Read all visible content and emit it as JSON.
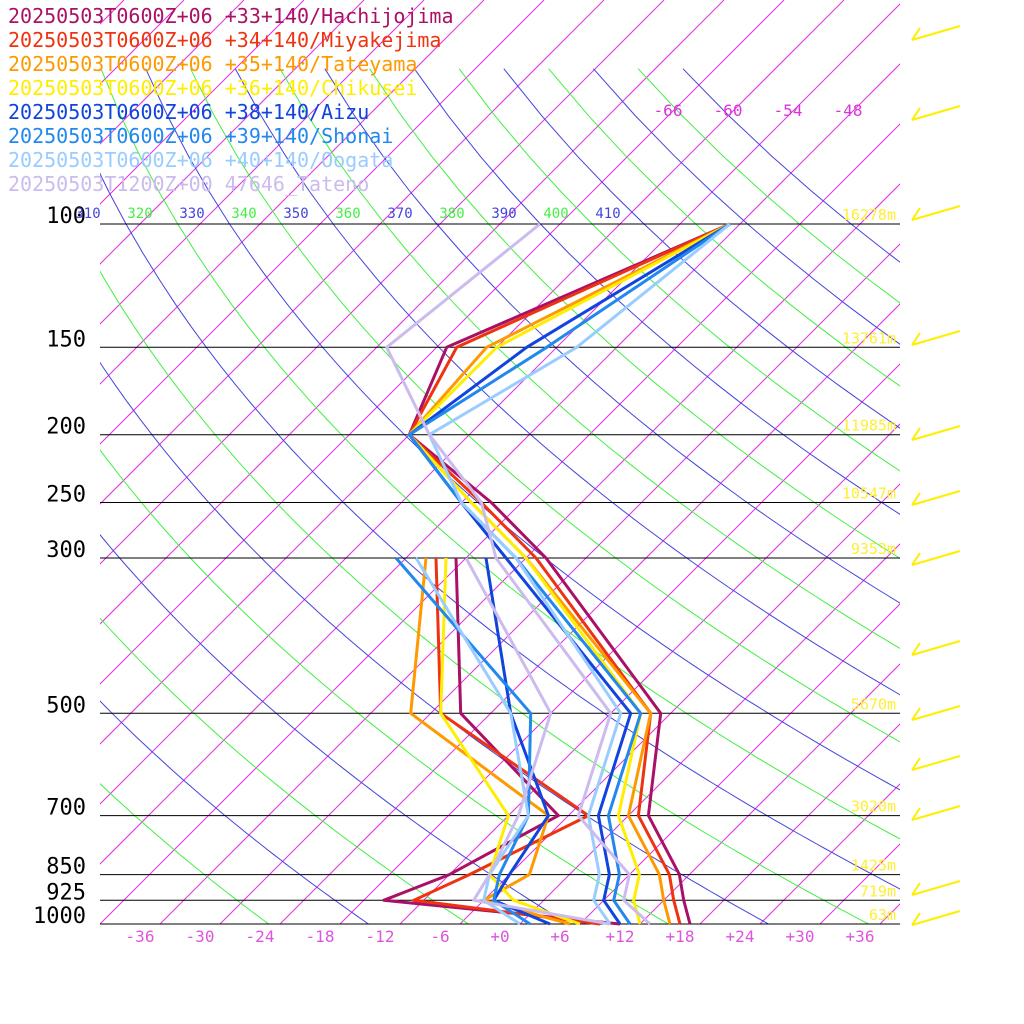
{
  "chart_data": {
    "type": "line",
    "subtype": "skew-T log-P sounding diagram",
    "pressure_levels": [
      100,
      150,
      200,
      250,
      300,
      500,
      700,
      850,
      925,
      1000
    ],
    "height_labels": [
      {
        "p": 100,
        "label": "16278m"
      },
      {
        "p": 150,
        "label": "13761m"
      },
      {
        "p": 200,
        "label": "11985m"
      },
      {
        "p": 250,
        "label": "10547m"
      },
      {
        "p": 300,
        "label": "9353m"
      },
      {
        "p": 500,
        "label": "5670m"
      },
      {
        "p": 700,
        "label": "3020m"
      },
      {
        "p": 850,
        "label": "1425m"
      },
      {
        "p": 925,
        "label": "719m"
      },
      {
        "p": 1000,
        "label": "63m"
      }
    ],
    "x_ticks": [
      "-36",
      "-30",
      "-24",
      "-18",
      "-12",
      "-6",
      "+0",
      "+6",
      "+12",
      "+18",
      "+24",
      "+30",
      "+36"
    ],
    "x_tick_values": [
      -36,
      -30,
      -24,
      -18,
      -12,
      -6,
      0,
      6,
      12,
      18,
      24,
      30,
      36
    ],
    "xlim": [
      -40,
      40
    ],
    "ylim_hPa": [
      100,
      1000
    ],
    "y_scale": "log",
    "temp_label_ticks": [
      "-66",
      "-60",
      "-54",
      "-48"
    ],
    "theta_labels": [
      "310",
      "320",
      "330",
      "340",
      "350",
      "360",
      "370",
      "380",
      "390",
      "400",
      "410"
    ],
    "colors": {
      "isotherm": "#dd33dd",
      "dry_adiabat_a": "#44ee44",
      "dry_adiabat_b": "#4444dd",
      "isobar": "#000000",
      "height_label": "#ffee33",
      "wind_barb": "#ffee00",
      "axis_label": "#000000",
      "x_tick": "#dd55dd"
    },
    "series": [
      {
        "name": "20250503T0600Z+06 +33+140/Hachijojima",
        "color": "#aa1166",
        "temperature": [
          [
            100,
            -47
          ],
          [
            150,
            -63
          ],
          [
            200,
            -58
          ],
          [
            250,
            -43
          ],
          [
            300,
            -32
          ],
          [
            500,
            -5
          ],
          [
            700,
            4
          ],
          [
            850,
            13
          ],
          [
            925,
            16
          ],
          [
            1000,
            19
          ]
        ],
        "dewpoint": [
          [
            300,
            -41
          ],
          [
            500,
            -25
          ],
          [
            700,
            -5
          ],
          [
            850,
            -10
          ],
          [
            925,
            -14
          ],
          [
            1000,
            12
          ]
        ]
      },
      {
        "name": "20250503T0600Z+06 +34+140/Miyakejima",
        "color": "#ee3311",
        "temperature": [
          [
            100,
            -47
          ],
          [
            150,
            -62
          ],
          [
            200,
            -58
          ],
          [
            250,
            -44
          ],
          [
            300,
            -33
          ],
          [
            500,
            -6
          ],
          [
            700,
            3
          ],
          [
            850,
            12
          ],
          [
            925,
            15
          ],
          [
            1000,
            18
          ]
        ],
        "dewpoint": [
          [
            300,
            -43
          ],
          [
            500,
            -27
          ],
          [
            700,
            -2
          ],
          [
            850,
            -8
          ],
          [
            925,
            -11
          ],
          [
            1000,
            10
          ]
        ]
      },
      {
        "name": "20250503T0600Z+06 +35+140/Tateyama",
        "color": "#ff9900",
        "temperature": [
          [
            100,
            -47
          ],
          [
            150,
            -59
          ],
          [
            200,
            -58
          ],
          [
            250,
            -45
          ],
          [
            300,
            -34
          ],
          [
            500,
            -6
          ],
          [
            700,
            2
          ],
          [
            850,
            11
          ],
          [
            925,
            14
          ],
          [
            1000,
            17
          ]
        ],
        "dewpoint": [
          [
            300,
            -44
          ],
          [
            500,
            -30
          ],
          [
            700,
            -6
          ],
          [
            850,
            -2
          ],
          [
            925,
            -4
          ],
          [
            1000,
            7
          ]
        ]
      },
      {
        "name": "20250503T0600Z+06 +36+140/Chikusei",
        "color": "#ffee00",
        "temperature": [
          [
            100,
            -47
          ],
          [
            150,
            -58
          ],
          [
            200,
            -58
          ],
          [
            250,
            -45
          ],
          [
            300,
            -34
          ],
          [
            500,
            -7
          ],
          [
            700,
            1
          ],
          [
            850,
            9
          ],
          [
            925,
            11
          ],
          [
            1000,
            14
          ]
        ],
        "dewpoint": [
          [
            300,
            -42
          ],
          [
            500,
            -27
          ],
          [
            700,
            -10
          ],
          [
            850,
            -6
          ],
          [
            925,
            -1
          ],
          [
            1000,
            8
          ]
        ]
      },
      {
        "name": "20250503T0600Z+06 +38+140/Aizu",
        "color": "#1144dd",
        "temperature": [
          [
            100,
            -47
          ],
          [
            150,
            -55
          ],
          [
            200,
            -58
          ],
          [
            250,
            -46
          ],
          [
            300,
            -36
          ],
          [
            500,
            -8
          ],
          [
            700,
            -1
          ],
          [
            850,
            6
          ],
          [
            925,
            8
          ],
          [
            1000,
            12
          ]
        ],
        "dewpoint": [
          [
            300,
            -38
          ],
          [
            500,
            -20
          ],
          [
            700,
            -6
          ],
          [
            850,
            -4
          ],
          [
            925,
            -3
          ],
          [
            1000,
            5
          ]
        ]
      },
      {
        "name": "20250503T0600Z+06 +39+140/Shonai",
        "color": "#2288ee",
        "temperature": [
          [
            100,
            -47
          ],
          [
            150,
            -53
          ],
          [
            200,
            -58
          ],
          [
            250,
            -46
          ],
          [
            300,
            -35
          ],
          [
            500,
            -7
          ],
          [
            700,
            0
          ],
          [
            850,
            7
          ],
          [
            925,
            9
          ],
          [
            1000,
            13
          ]
        ],
        "dewpoint": [
          [
            300,
            -47
          ],
          [
            500,
            -18
          ],
          [
            700,
            -8
          ],
          [
            850,
            -5
          ],
          [
            925,
            -3
          ],
          [
            1000,
            3
          ]
        ]
      },
      {
        "name": "20250503T0600Z+06 +40+140/Oogata",
        "color": "#99ccff",
        "temperature": [
          [
            100,
            -47
          ],
          [
            150,
            -50
          ],
          [
            200,
            -56
          ],
          [
            250,
            -46
          ],
          [
            300,
            -35
          ],
          [
            500,
            -9
          ],
          [
            700,
            -2
          ],
          [
            850,
            5
          ],
          [
            925,
            7
          ],
          [
            1000,
            11
          ]
        ],
        "dewpoint": [
          [
            300,
            -45
          ],
          [
            500,
            -20
          ],
          [
            700,
            -8
          ],
          [
            850,
            -6
          ],
          [
            925,
            -4
          ],
          [
            1000,
            2
          ]
        ]
      },
      {
        "name": "20250503T1200Z+00 47646_Tateno",
        "color": "#ccbbee",
        "temperature": [
          [
            100,
            -66
          ],
          [
            150,
            -69
          ],
          [
            200,
            -56
          ],
          [
            250,
            -44
          ],
          [
            300,
            -37
          ],
          [
            500,
            -10
          ],
          [
            700,
            -3
          ],
          [
            850,
            8
          ],
          [
            925,
            10
          ],
          [
            1000,
            15
          ]
        ],
        "dewpoint": [
          [
            300,
            -40
          ],
          [
            500,
            -16
          ],
          [
            700,
            -9
          ],
          [
            850,
            -6
          ],
          [
            925,
            -5
          ],
          [
            1000,
            11
          ]
        ]
      }
    ]
  }
}
